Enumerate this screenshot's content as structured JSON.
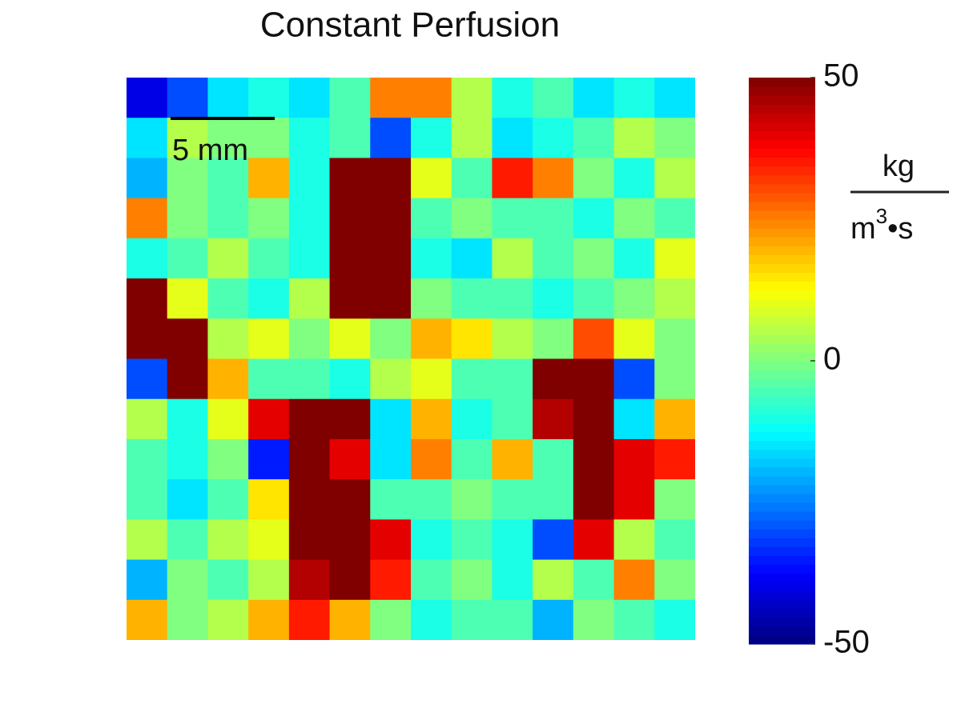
{
  "chart_data": {
    "type": "heatmap",
    "title": "Constant Perfusion",
    "colormap": "jet",
    "scale_bar_label": "5 mm",
    "colorbar_unit": {
      "numerator": "kg",
      "denominator_base": "m",
      "denominator_exponent": "3",
      "denominator_rest": "•s"
    },
    "zlim": [
      -50,
      50
    ],
    "zticks": [
      -50,
      0,
      50
    ],
    "z": [
      [
        -40,
        -30,
        -15,
        -10,
        -15,
        -5,
        25,
        25,
        5,
        -10,
        -5,
        -15,
        -10,
        -15
      ],
      [
        -15,
        5,
        0,
        0,
        -10,
        -5,
        -30,
        -10,
        5,
        -15,
        -10,
        -5,
        5,
        0
      ],
      [
        -20,
        0,
        -5,
        20,
        -10,
        50,
        50,
        10,
        -5,
        35,
        25,
        0,
        -10,
        5
      ],
      [
        25,
        0,
        -5,
        0,
        -10,
        50,
        50,
        -5,
        0,
        -5,
        -5,
        -10,
        0,
        -5
      ],
      [
        -10,
        -5,
        5,
        -5,
        -10,
        50,
        50,
        -10,
        -15,
        5,
        -5,
        0,
        -10,
        10
      ],
      [
        50,
        10,
        -5,
        -10,
        5,
        50,
        50,
        0,
        -5,
        -5,
        -10,
        -5,
        0,
        5
      ],
      [
        50,
        50,
        5,
        10,
        0,
        10,
        0,
        20,
        15,
        5,
        0,
        30,
        10,
        0
      ],
      [
        -30,
        50,
        20,
        -5,
        -5,
        -10,
        5,
        10,
        -5,
        -5,
        50,
        50,
        -30,
        0
      ],
      [
        5,
        -10,
        10,
        40,
        50,
        50,
        -15,
        20,
        -10,
        -5,
        45,
        50,
        -15,
        20
      ],
      [
        -5,
        -10,
        0,
        -35,
        50,
        40,
        -15,
        25,
        -5,
        20,
        -5,
        50,
        40,
        35
      ],
      [
        -5,
        -15,
        -5,
        15,
        50,
        50,
        -5,
        -5,
        0,
        -5,
        -5,
        50,
        40,
        0
      ],
      [
        5,
        -5,
        5,
        10,
        50,
        50,
        40,
        -10,
        -5,
        -10,
        -30,
        40,
        5,
        -5
      ],
      [
        -20,
        0,
        -5,
        5,
        45,
        50,
        35,
        -5,
        0,
        -10,
        5,
        -5,
        25,
        0
      ],
      [
        20,
        0,
        5,
        20,
        35,
        20,
        0,
        -10,
        -5,
        -5,
        -20,
        0,
        -5,
        -10
      ]
    ]
  }
}
